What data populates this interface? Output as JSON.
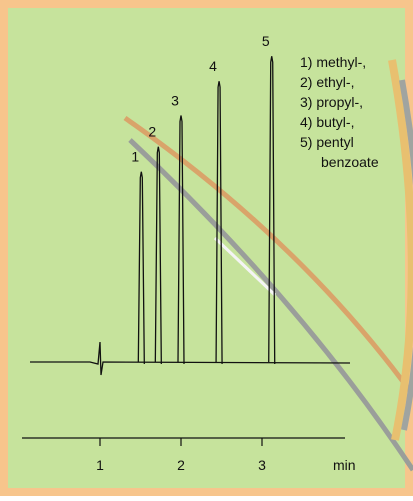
{
  "chart_data": {
    "type": "chromatogram",
    "categories": [
      "1",
      "2",
      "3",
      "4",
      "5"
    ],
    "x": [
      1.51,
      1.72,
      2.0,
      2.47,
      3.12
    ],
    "values": [
      61,
      69,
      79,
      90,
      98
    ],
    "color": "#111111",
    "xlim": [
      0,
      4
    ],
    "xticks": [
      1,
      2,
      3
    ],
    "ylim": [
      0,
      100
    ],
    "xlabel": "min",
    "legend": [
      "1) methyl-,",
      "2) ethyl-,",
      "3) propyl-,",
      "4) butyl-,",
      "5) pentyl",
      "benzoate"
    ]
  }
}
